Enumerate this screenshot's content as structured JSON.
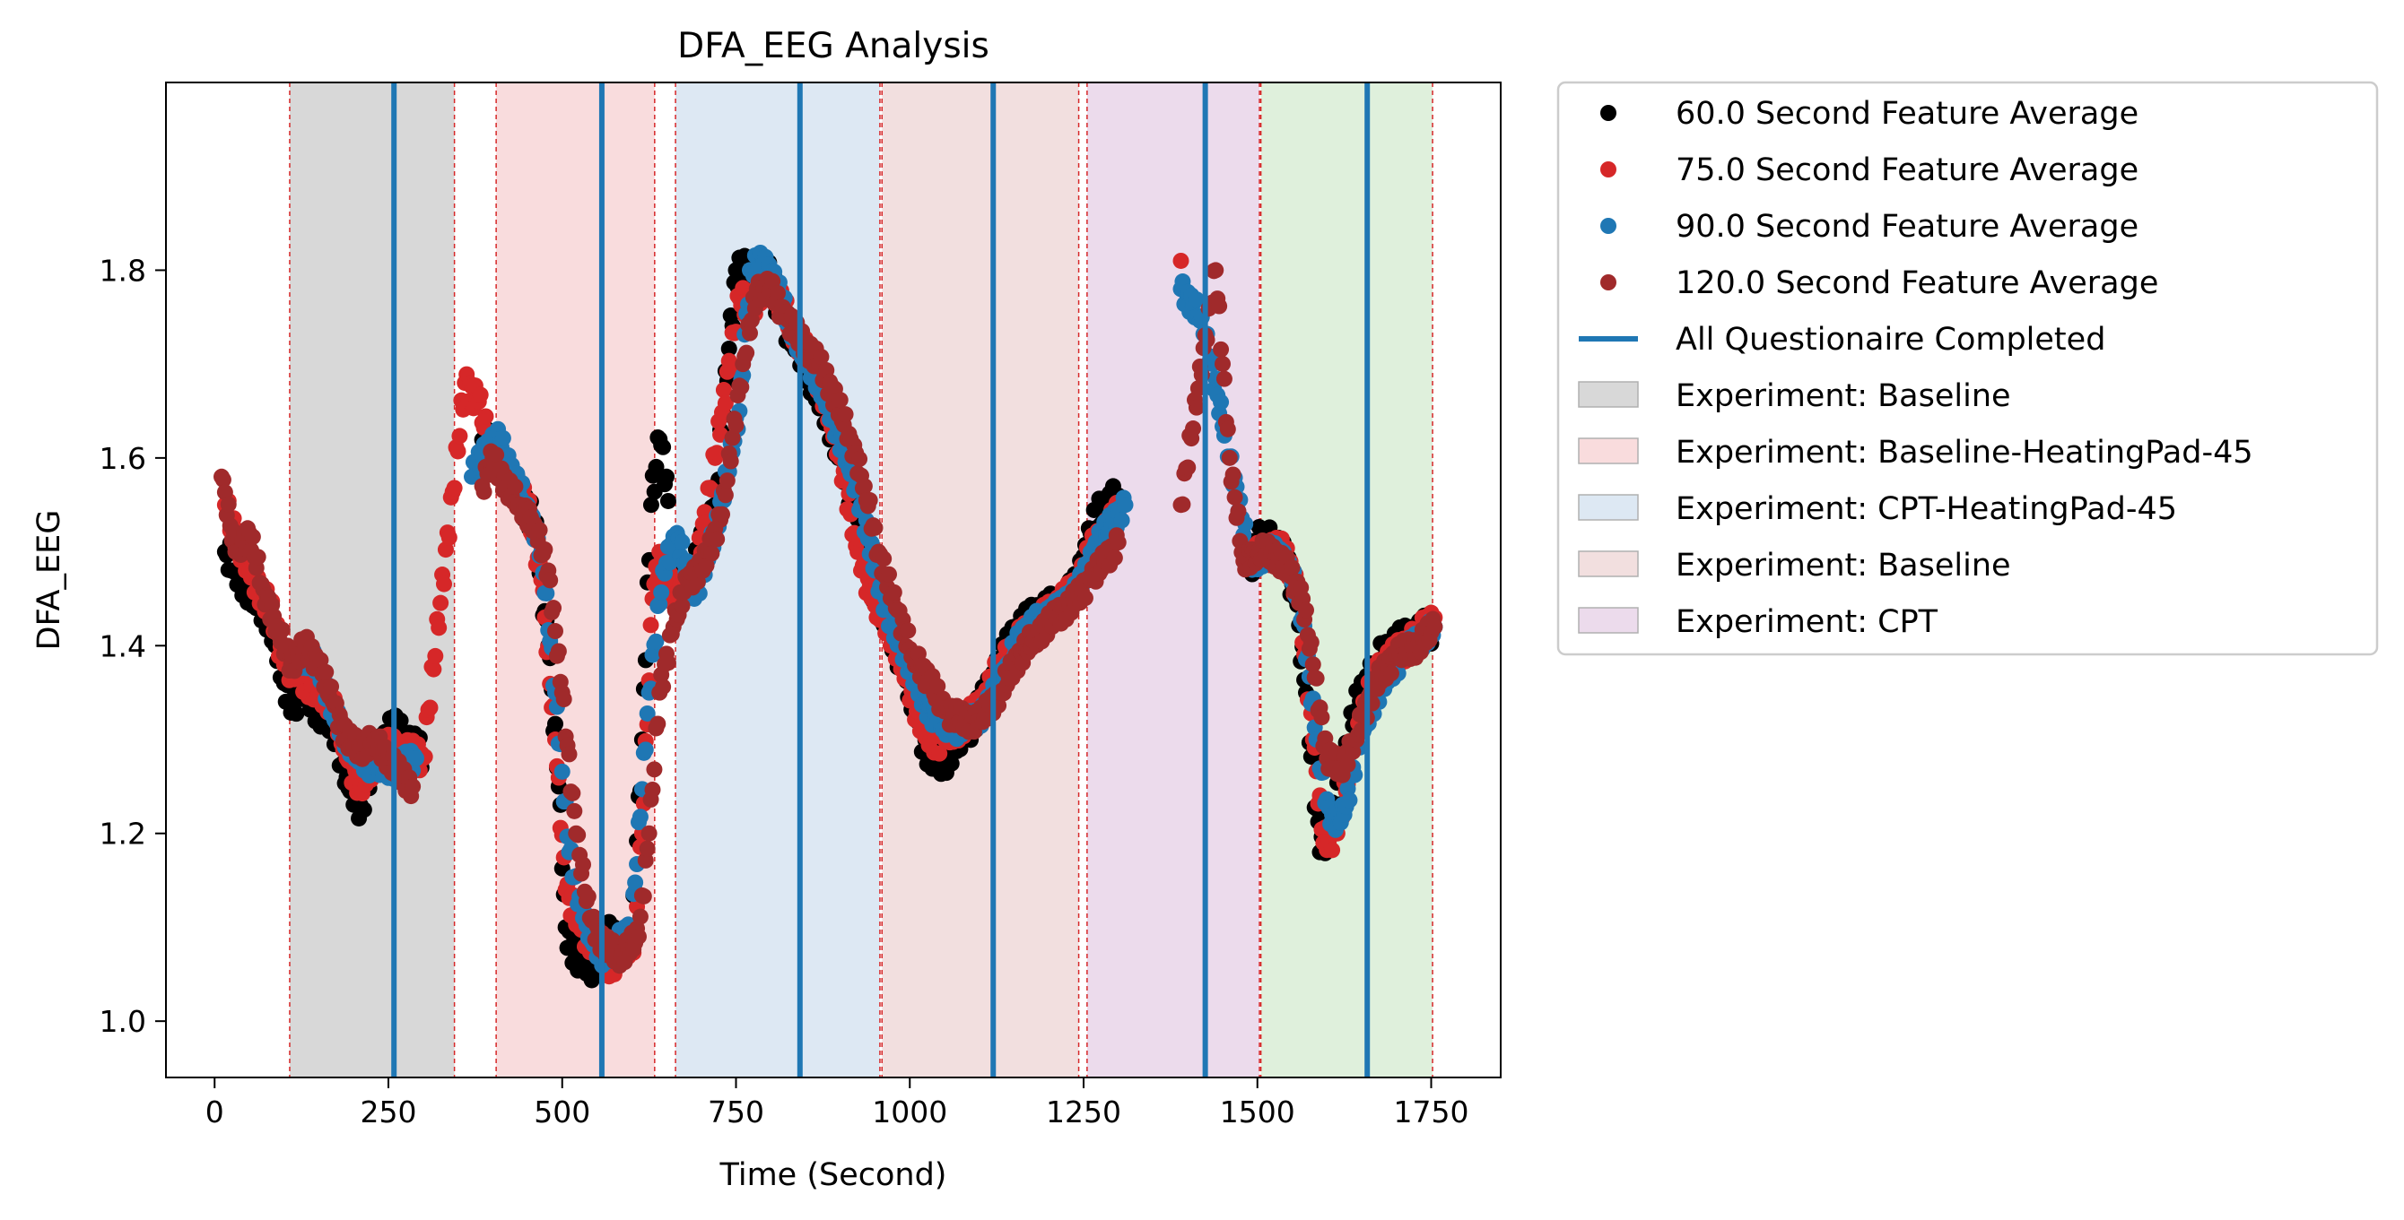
{
  "chart_data": {
    "type": "scatter",
    "title": "DFA_EEG Analysis",
    "xlabel": "Time (Second)",
    "ylabel": "DFA_EEG",
    "xlim": [
      -70,
      1850
    ],
    "ylim": [
      0.94,
      2.0
    ],
    "xticks": [
      0,
      250,
      500,
      750,
      1000,
      1250,
      1500,
      1750
    ],
    "yticks": [
      1.0,
      1.2,
      1.4,
      1.6,
      1.8
    ],
    "grid": false,
    "legend_position": "outside upper right",
    "shaded_regions": [
      {
        "label": "Experiment: Baseline",
        "start": 108,
        "end": 345,
        "color": "#d8d8d8"
      },
      {
        "label": "Experiment: Baseline-HeatingPad-45",
        "start": 405,
        "end": 633,
        "color": "#f9dcdd"
      },
      {
        "label": "Experiment: CPT-HeatingPad-45",
        "start": 663,
        "end": 957,
        "color": "#dde8f3"
      },
      {
        "label": "Experiment: Baseline",
        "start": 960,
        "end": 1243,
        "color": "#f2dfdf"
      },
      {
        "label": "Experiment: CPT",
        "start": 1255,
        "end": 1503,
        "color": "#ecdbec"
      },
      {
        "label": "",
        "start": 1505,
        "end": 1752,
        "color": "#dff0dc"
      }
    ],
    "boundary_lines": [
      108,
      345,
      405,
      633,
      663,
      957,
      960,
      1243,
      1255,
      1503,
      1505,
      1752
    ],
    "questionnaire_lines": {
      "label": "All Questionaire Completed",
      "color": "#1f77b4",
      "x": [
        258,
        557,
        842,
        1120,
        1425,
        1658
      ]
    },
    "series": [
      {
        "name": "60.0 Second Feature Average",
        "color": "#000000",
        "offset": 0,
        "spread": 0.018,
        "points": [
          [
            15,
            1.5
          ],
          [
            50,
            1.46
          ],
          [
            80,
            1.43
          ],
          [
            100,
            1.36
          ],
          [
            115,
            1.34
          ],
          [
            130,
            1.36
          ],
          [
            150,
            1.33
          ],
          [
            170,
            1.32
          ],
          [
            190,
            1.26
          ],
          [
            210,
            1.23
          ],
          [
            230,
            1.28
          ],
          [
            255,
            1.31
          ],
          [
            275,
            1.3
          ],
          [
            300,
            1.28
          ],
          [
            380,
            1.6
          ],
          [
            400,
            1.62
          ],
          [
            420,
            1.58
          ],
          [
            440,
            1.56
          ],
          [
            460,
            1.53
          ],
          [
            480,
            1.4
          ],
          [
            495,
            1.25
          ],
          [
            505,
            1.1
          ],
          [
            520,
            1.07
          ],
          [
            545,
            1.06
          ],
          [
            560,
            1.09
          ],
          [
            600,
            1.08
          ],
          [
            615,
            1.3
          ],
          [
            628,
            1.55
          ],
          [
            640,
            1.62
          ],
          [
            650,
            1.58
          ],
          [
            660,
            1.46
          ],
          [
            690,
            1.48
          ],
          [
            720,
            1.55
          ],
          [
            750,
            1.8
          ],
          [
            800,
            1.79
          ],
          [
            815,
            1.75
          ],
          [
            840,
            1.72
          ],
          [
            860,
            1.68
          ],
          [
            880,
            1.65
          ],
          [
            900,
            1.6
          ],
          [
            920,
            1.55
          ],
          [
            945,
            1.47
          ],
          [
            970,
            1.42
          ],
          [
            990,
            1.38
          ],
          [
            1010,
            1.32
          ],
          [
            1030,
            1.28
          ],
          [
            1050,
            1.28
          ],
          [
            1080,
            1.31
          ],
          [
            1100,
            1.33
          ],
          [
            1130,
            1.38
          ],
          [
            1150,
            1.41
          ],
          [
            1180,
            1.43
          ],
          [
            1210,
            1.44
          ],
          [
            1240,
            1.46
          ],
          [
            1260,
            1.52
          ],
          [
            1280,
            1.55
          ],
          [
            1300,
            1.56
          ],
          [
            1490,
            1.49
          ],
          [
            1510,
            1.52
          ],
          [
            1540,
            1.49
          ],
          [
            1555,
            1.45
          ],
          [
            1570,
            1.35
          ],
          [
            1590,
            1.18
          ],
          [
            1610,
            1.22
          ],
          [
            1640,
            1.33
          ],
          [
            1670,
            1.38
          ],
          [
            1700,
            1.4
          ],
          [
            1730,
            1.41
          ],
          [
            1755,
            1.42
          ]
        ]
      },
      {
        "name": "75.0 Second Feature Average",
        "color": "#d62728",
        "offset": 5,
        "spread": 0.015,
        "points": [
          [
            15,
            1.55
          ],
          [
            50,
            1.48
          ],
          [
            80,
            1.44
          ],
          [
            100,
            1.38
          ],
          [
            120,
            1.37
          ],
          [
            150,
            1.35
          ],
          [
            170,
            1.34
          ],
          [
            190,
            1.28
          ],
          [
            210,
            1.25
          ],
          [
            240,
            1.29
          ],
          [
            260,
            1.29
          ],
          [
            300,
            1.28
          ],
          [
            360,
            1.68
          ],
          [
            380,
            1.66
          ],
          [
            400,
            1.6
          ],
          [
            420,
            1.58
          ],
          [
            450,
            1.55
          ],
          [
            470,
            1.47
          ],
          [
            490,
            1.3
          ],
          [
            505,
            1.14
          ],
          [
            525,
            1.1
          ],
          [
            550,
            1.08
          ],
          [
            570,
            1.06
          ],
          [
            605,
            1.09
          ],
          [
            615,
            1.2
          ],
          [
            630,
            1.45
          ],
          [
            640,
            1.5
          ],
          [
            660,
            1.45
          ],
          [
            690,
            1.47
          ],
          [
            720,
            1.6
          ],
          [
            755,
            1.77
          ],
          [
            770,
            1.76
          ],
          [
            800,
            1.79
          ],
          [
            830,
            1.74
          ],
          [
            860,
            1.7
          ],
          [
            880,
            1.66
          ],
          [
            900,
            1.6
          ],
          [
            920,
            1.52
          ],
          [
            945,
            1.45
          ],
          [
            970,
            1.42
          ],
          [
            990,
            1.38
          ],
          [
            1010,
            1.33
          ],
          [
            1030,
            1.3
          ],
          [
            1050,
            1.3
          ],
          [
            1080,
            1.32
          ],
          [
            1100,
            1.33
          ],
          [
            1130,
            1.38
          ],
          [
            1150,
            1.4
          ],
          [
            1180,
            1.42
          ],
          [
            1210,
            1.44
          ],
          [
            1240,
            1.46
          ],
          [
            1260,
            1.5
          ],
          [
            1280,
            1.52
          ],
          [
            1300,
            1.54
          ],
          [
            1390,
            1.81
          ],
          [
            1490,
            1.49
          ],
          [
            1510,
            1.5
          ],
          [
            1540,
            1.5
          ],
          [
            1560,
            1.45
          ],
          [
            1580,
            1.3
          ],
          [
            1595,
            1.19
          ],
          [
            1615,
            1.2
          ],
          [
            1640,
            1.3
          ],
          [
            1670,
            1.37
          ],
          [
            1700,
            1.39
          ],
          [
            1730,
            1.41
          ],
          [
            1755,
            1.43
          ]
        ]
      },
      {
        "name": "90.0 Second Feature Average",
        "color": "#1f77b4",
        "offset": 10,
        "spread": 0.012,
        "points": [
          [
            120,
            1.39
          ],
          [
            150,
            1.38
          ],
          [
            170,
            1.33
          ],
          [
            190,
            1.3
          ],
          [
            210,
            1.28
          ],
          [
            230,
            1.27
          ],
          [
            260,
            1.27
          ],
          [
            290,
            1.28
          ],
          [
            370,
            1.58
          ],
          [
            390,
            1.61
          ],
          [
            410,
            1.62
          ],
          [
            430,
            1.58
          ],
          [
            450,
            1.55
          ],
          [
            470,
            1.5
          ],
          [
            490,
            1.35
          ],
          [
            510,
            1.18
          ],
          [
            530,
            1.11
          ],
          [
            555,
            1.07
          ],
          [
            575,
            1.08
          ],
          [
            600,
            1.1
          ],
          [
            625,
            1.35
          ],
          [
            645,
            1.48
          ],
          [
            665,
            1.52
          ],
          [
            690,
            1.45
          ],
          [
            720,
            1.52
          ],
          [
            755,
            1.65
          ],
          [
            770,
            1.8
          ],
          [
            790,
            1.81
          ],
          [
            810,
            1.78
          ],
          [
            840,
            1.72
          ],
          [
            870,
            1.68
          ],
          [
            890,
            1.64
          ],
          [
            910,
            1.6
          ],
          [
            930,
            1.55
          ],
          [
            950,
            1.48
          ],
          [
            975,
            1.42
          ],
          [
            1000,
            1.38
          ],
          [
            1020,
            1.34
          ],
          [
            1040,
            1.32
          ],
          [
            1060,
            1.31
          ],
          [
            1090,
            1.32
          ],
          [
            1110,
            1.33
          ],
          [
            1140,
            1.38
          ],
          [
            1160,
            1.41
          ],
          [
            1190,
            1.43
          ],
          [
            1220,
            1.44
          ],
          [
            1250,
            1.47
          ],
          [
            1270,
            1.51
          ],
          [
            1290,
            1.53
          ],
          [
            1310,
            1.55
          ],
          [
            1390,
            1.78
          ],
          [
            1420,
            1.75
          ],
          [
            1490,
            1.49
          ],
          [
            1520,
            1.5
          ],
          [
            1545,
            1.49
          ],
          [
            1565,
            1.43
          ],
          [
            1585,
            1.3
          ],
          [
            1605,
            1.21
          ],
          [
            1625,
            1.22
          ],
          [
            1650,
            1.31
          ],
          [
            1680,
            1.36
          ],
          [
            1710,
            1.39
          ],
          [
            1740,
            1.41
          ],
          [
            1755,
            1.42
          ]
        ]
      },
      {
        "name": "120.0 Second Feature Average",
        "color": "#a02a2b",
        "offset": 15,
        "spread": 0.012,
        "points": [
          [
            10,
            1.58
          ],
          [
            30,
            1.5
          ],
          [
            50,
            1.52
          ],
          [
            70,
            1.46
          ],
          [
            90,
            1.42
          ],
          [
            110,
            1.38
          ],
          [
            130,
            1.4
          ],
          [
            150,
            1.38
          ],
          [
            170,
            1.34
          ],
          [
            190,
            1.3
          ],
          [
            210,
            1.29
          ],
          [
            230,
            1.3
          ],
          [
            250,
            1.28
          ],
          [
            270,
            1.26
          ],
          [
            285,
            1.25
          ],
          [
            385,
            1.57
          ],
          [
            400,
            1.6
          ],
          [
            420,
            1.57
          ],
          [
            440,
            1.55
          ],
          [
            460,
            1.53
          ],
          [
            480,
            1.48
          ],
          [
            500,
            1.35
          ],
          [
            520,
            1.2
          ],
          [
            540,
            1.11
          ],
          [
            560,
            1.08
          ],
          [
            585,
            1.07
          ],
          [
            610,
            1.09
          ],
          [
            625,
            1.2
          ],
          [
            640,
            1.35
          ],
          [
            660,
            1.42
          ],
          [
            680,
            1.47
          ],
          [
            700,
            1.48
          ],
          [
            730,
            1.54
          ],
          [
            760,
            1.7
          ],
          [
            780,
            1.78
          ],
          [
            800,
            1.78
          ],
          [
            820,
            1.75
          ],
          [
            850,
            1.72
          ],
          [
            870,
            1.7
          ],
          [
            895,
            1.66
          ],
          [
            915,
            1.62
          ],
          [
            935,
            1.57
          ],
          [
            955,
            1.5
          ],
          [
            980,
            1.44
          ],
          [
            1005,
            1.39
          ],
          [
            1030,
            1.36
          ],
          [
            1050,
            1.33
          ],
          [
            1080,
            1.32
          ],
          [
            1100,
            1.32
          ],
          [
            1130,
            1.35
          ],
          [
            1150,
            1.38
          ],
          [
            1180,
            1.41
          ],
          [
            1210,
            1.43
          ],
          [
            1240,
            1.45
          ],
          [
            1260,
            1.47
          ],
          [
            1280,
            1.49
          ],
          [
            1300,
            1.51
          ],
          [
            1390,
            1.55
          ],
          [
            1440,
            1.8
          ],
          [
            1460,
            1.6
          ],
          [
            1480,
            1.49
          ],
          [
            1500,
            1.5
          ],
          [
            1520,
            1.5
          ],
          [
            1545,
            1.48
          ],
          [
            1565,
            1.45
          ],
          [
            1580,
            1.38
          ],
          [
            1600,
            1.28
          ],
          [
            1620,
            1.27
          ],
          [
            1640,
            1.3
          ],
          [
            1670,
            1.36
          ],
          [
            1700,
            1.39
          ],
          [
            1730,
            1.4
          ],
          [
            1755,
            1.42
          ]
        ]
      }
    ]
  }
}
